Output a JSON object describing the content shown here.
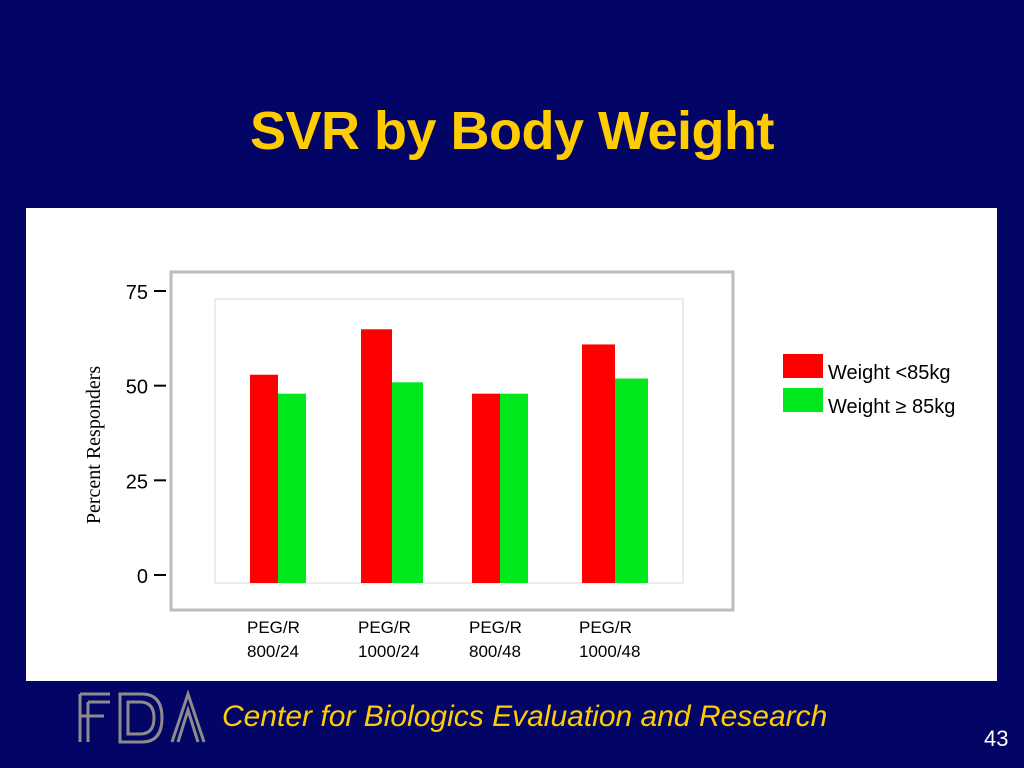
{
  "slide": {
    "title": "SVR by Body Weight",
    "footer_org": "Center for Biologics Evaluation and Research",
    "slide_number": "43",
    "logo_text": "FDA"
  },
  "colors": {
    "background": "#020466",
    "title": "#FFCC00",
    "series_1": "#FF0000",
    "series_2": "#00E81C"
  },
  "chart_data": {
    "type": "bar",
    "title": "",
    "xlabel": "",
    "ylabel": "Percent Responders",
    "ylim": [
      0,
      75
    ],
    "yticks": [
      "0",
      "25",
      "50",
      "75"
    ],
    "categories": [
      "PEG/R 800/24",
      "PEG/R 1000/24",
      "PEG/R 800/48",
      "PEG/R 1000/48"
    ],
    "category_lines": [
      [
        "PEG/R",
        "800/24"
      ],
      [
        "PEG/R",
        "1000/24"
      ],
      [
        "PEG/R",
        "800/48"
      ],
      [
        "PEG/R",
        "1000/48"
      ]
    ],
    "series": [
      {
        "name": "Weight <85kg",
        "color": "#FF0000",
        "values": [
          55,
          67,
          50,
          63
        ]
      },
      {
        "name": "Weight ≥ 85kg",
        "color": "#00E81C",
        "values": [
          50,
          53,
          50,
          54
        ]
      }
    ],
    "legend_position": "right",
    "grid": false
  }
}
